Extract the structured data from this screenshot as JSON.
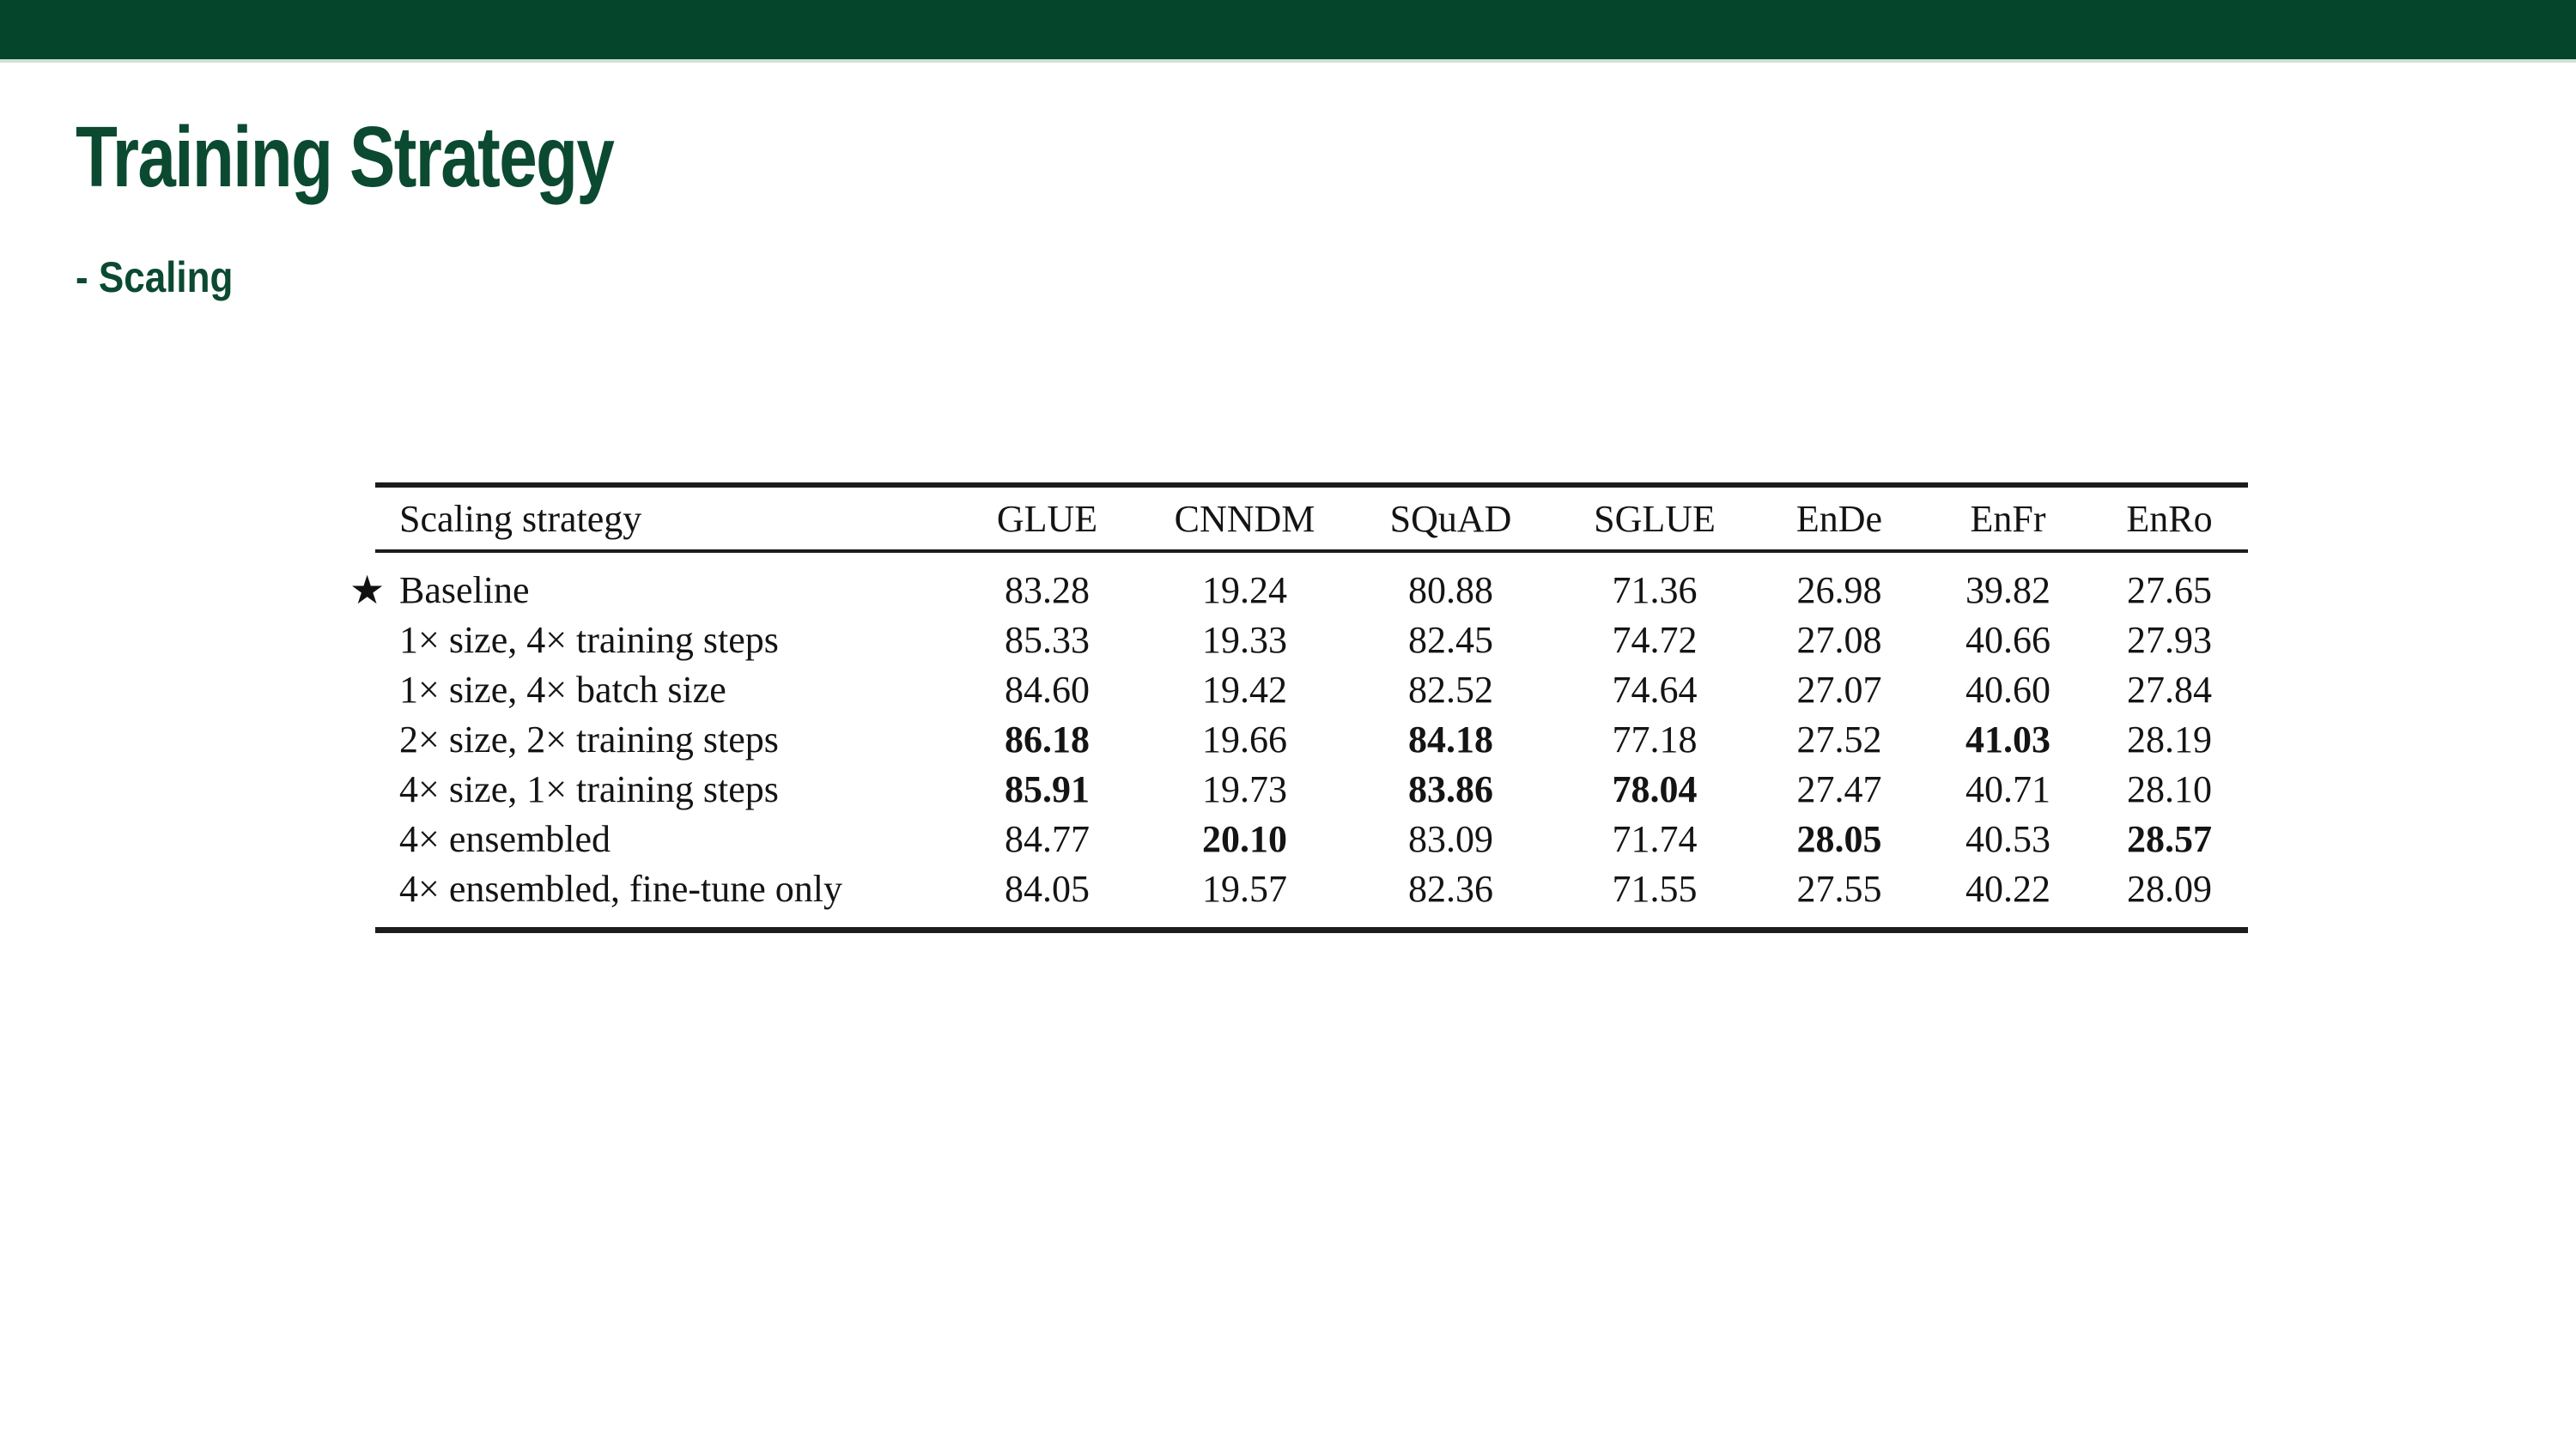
{
  "header": {
    "title": "Training Strategy",
    "subtitle": "- Scaling"
  },
  "colors": {
    "topbar_green": "#04452b",
    "topbar_underline": "#cfe0d7",
    "title_green": "#0b4a31",
    "table_rule": "#1c1c1c"
  },
  "table": {
    "columns": [
      "Scaling strategy",
      "GLUE",
      "CNNDM",
      "SQuAD",
      "SGLUE",
      "EnDe",
      "EnFr",
      "EnRo"
    ],
    "baseline_marker": "★",
    "rows": [
      {
        "label": "Baseline",
        "starred": true,
        "values": [
          "83.28",
          "19.24",
          "80.88",
          "71.36",
          "26.98",
          "39.82",
          "27.65"
        ],
        "bold": []
      },
      {
        "label": "1× size, 4× training steps",
        "starred": false,
        "values": [
          "85.33",
          "19.33",
          "82.45",
          "74.72",
          "27.08",
          "40.66",
          "27.93"
        ],
        "bold": []
      },
      {
        "label": "1× size, 4× batch size",
        "starred": false,
        "values": [
          "84.60",
          "19.42",
          "82.52",
          "74.64",
          "27.07",
          "40.60",
          "27.84"
        ],
        "bold": []
      },
      {
        "label": "2× size, 2× training steps",
        "starred": false,
        "values": [
          "86.18",
          "19.66",
          "84.18",
          "77.18",
          "27.52",
          "41.03",
          "28.19"
        ],
        "bold": [
          0,
          2,
          5
        ]
      },
      {
        "label": "4× size, 1× training steps",
        "starred": false,
        "values": [
          "85.91",
          "19.73",
          "83.86",
          "78.04",
          "27.47",
          "40.71",
          "28.10"
        ],
        "bold": [
          0,
          2,
          3
        ]
      },
      {
        "label": "4× ensembled",
        "starred": false,
        "values": [
          "84.77",
          "20.10",
          "83.09",
          "71.74",
          "28.05",
          "40.53",
          "28.57"
        ],
        "bold": [
          1,
          4,
          6
        ]
      },
      {
        "label": "4× ensembled, fine-tune only",
        "starred": false,
        "values": [
          "84.05",
          "19.57",
          "82.36",
          "71.55",
          "27.55",
          "40.22",
          "28.09"
        ],
        "bold": []
      }
    ]
  }
}
